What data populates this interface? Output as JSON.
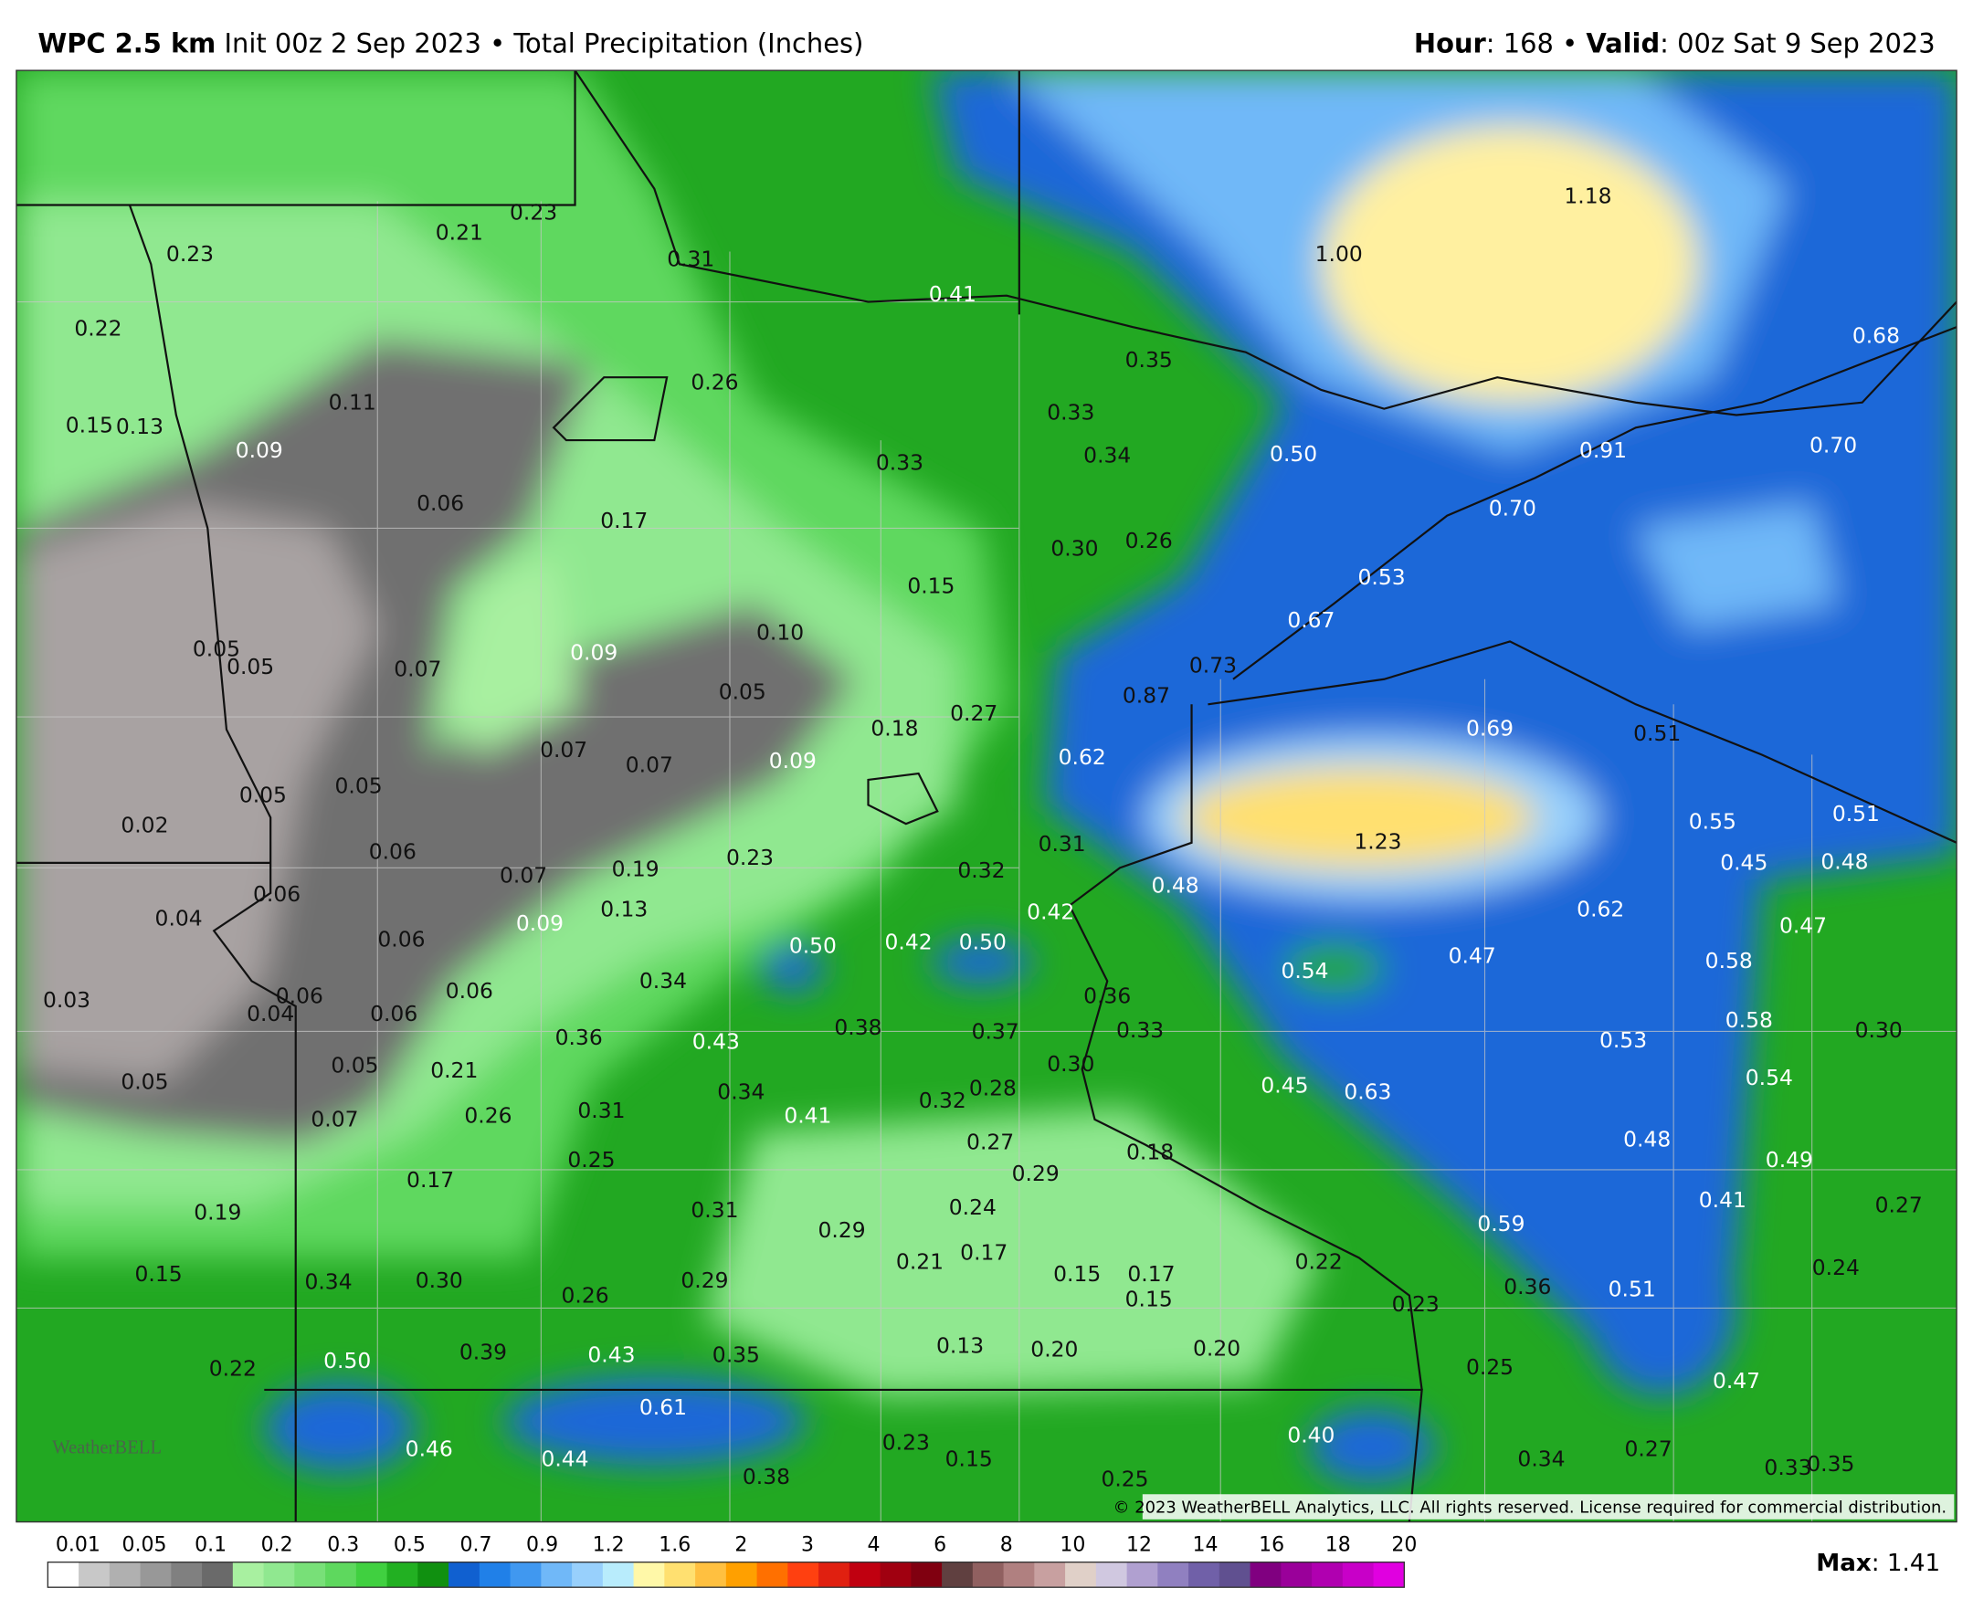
{
  "header": {
    "model": "WPC 2.5 km",
    "init": "Init 00z 2 Sep 2023 • Total Precipitation (Inches)",
    "hour_label": "Hour",
    "hour_value": ": 168 •",
    "valid_label": "Valid",
    "valid_value": ": 00z Sat 9 Sep 2023"
  },
  "map_labels": [
    "0.23",
    "0.21",
    "0.23",
    "0.31",
    "0.41",
    "0.22",
    "0.26",
    "0.33",
    "0.34",
    "0.35",
    "0.11",
    "0.15",
    "0.13",
    "0.09",
    "0.33",
    "0.50",
    "0.91",
    "0.70",
    "0.68",
    "1.00",
    "1.18",
    "0.06",
    "0.17",
    "0.30",
    "0.26",
    "0.70",
    "0.53",
    "0.67",
    "0.15",
    "0.10",
    "0.05",
    "0.05",
    "0.07",
    "0.09",
    "0.05",
    "0.73",
    "0.87",
    "0.18",
    "0.27",
    "0.69",
    "0.51",
    "0.07",
    "0.07",
    "0.09",
    "0.62",
    "0.05",
    "0.05",
    "0.02",
    "0.55",
    "0.51",
    "0.06",
    "0.07",
    "0.19",
    "0.23",
    "0.31",
    "1.23",
    "0.45",
    "0.48",
    "0.04",
    "0.06",
    "0.09",
    "0.13",
    "0.32",
    "0.42",
    "0.48",
    "0.62",
    "0.47",
    "0.06",
    "0.50",
    "0.42",
    "0.50",
    "0.54",
    "0.47",
    "0.58",
    "0.03",
    "0.04",
    "0.06",
    "0.06",
    "0.06",
    "0.34",
    "0.36",
    "0.58",
    "0.30",
    "0.36",
    "0.43",
    "0.38",
    "0.37",
    "0.33",
    "0.53",
    "0.05",
    "0.21",
    "0.30",
    "0.05",
    "0.34",
    "0.28",
    "0.32",
    "0.45",
    "0.63",
    "0.54",
    "0.26",
    "0.31",
    "0.41",
    "0.07",
    "0.27",
    "0.18",
    "0.48",
    "0.25",
    "0.29",
    "0.49",
    "0.17",
    "0.19",
    "0.31",
    "0.24",
    "0.41",
    "0.27",
    "0.29",
    "0.59",
    "0.21",
    "0.17",
    "0.22",
    "0.24",
    "0.15",
    "0.34",
    "0.30",
    "0.26",
    "0.29",
    "0.15",
    "0.17",
    "0.15",
    "0.36",
    "0.51",
    "0.23",
    "0.13",
    "0.20",
    "0.20",
    "0.22",
    "0.50",
    "0.39",
    "0.43",
    "0.35",
    "0.25",
    "0.47",
    "0.61",
    "0.23",
    "0.46",
    "0.44",
    "0.40",
    "0.38",
    "0.15",
    "0.25",
    "0.34",
    "0.27",
    "0.33",
    "0.35"
  ],
  "legend": {
    "ticks": [
      "0.01",
      "0.05",
      "0.1",
      "0.2",
      "0.3",
      "0.5",
      "0.7",
      "0.9",
      "1.2",
      "1.6",
      "2",
      "3",
      "4",
      "6",
      "8",
      "10",
      "12",
      "14",
      "16",
      "18",
      "20"
    ],
    "colors": [
      "#ffffff",
      "#c8c8c8",
      "#b0b0b0",
      "#989898",
      "#808080",
      "#6a6a6a",
      "#a8f0a0",
      "#90e890",
      "#78e078",
      "#5ed85e",
      "#40d040",
      "#22b022",
      "#109010",
      "#1060d0",
      "#2080e8",
      "#4098f0",
      "#70b8f8",
      "#98d0fc",
      "#b8ecfc",
      "#fff8a8",
      "#ffe070",
      "#ffc040",
      "#ffa000",
      "#ff7000",
      "#ff4010",
      "#e02010",
      "#c00010",
      "#a00010",
      "#800010",
      "#604040",
      "#906060",
      "#b08080",
      "#c8a0a0",
      "#e0d0c8",
      "#d0c8e0",
      "#b0a0d0",
      "#9080c0",
      "#7060a8",
      "#605090",
      "#800080",
      "#9a009a",
      "#b000b0",
      "#c800c8",
      "#e000e0"
    ]
  },
  "max_label": "Max",
  "max_value": ": 1.41",
  "copyright": "© 2023 WeatherBELL Analytics, LLC. All rights reserved. License required for commercial distribution.",
  "logo": "WeatherBELL"
}
